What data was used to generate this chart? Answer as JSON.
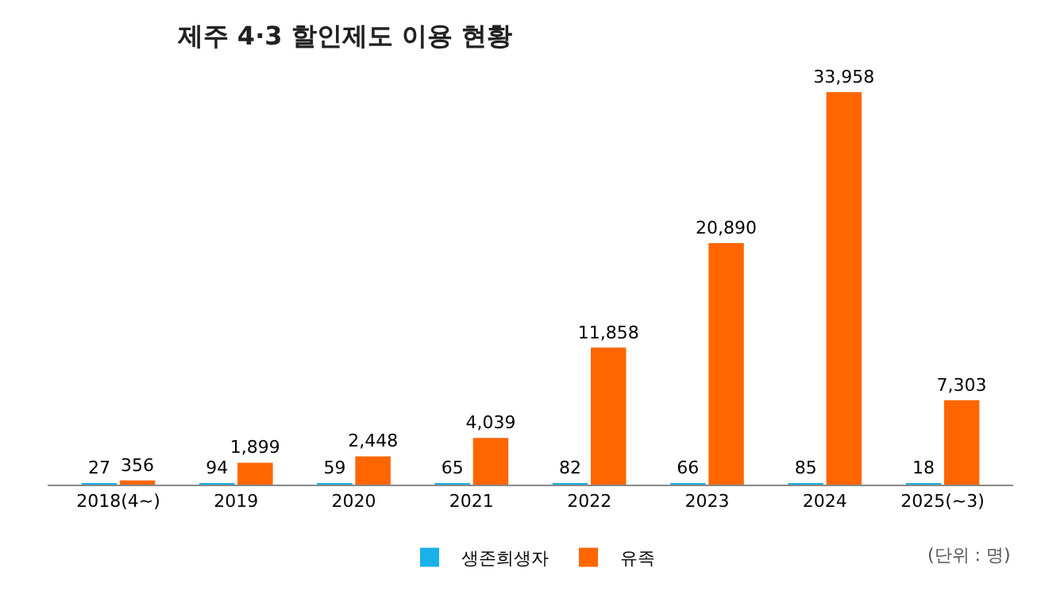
{
  "chart_data": {
    "type": "bar",
    "title": "제주 4·3 할인제도 이용 현황",
    "categories": [
      "2018(4~)",
      "2019",
      "2020",
      "2021",
      "2022",
      "2023",
      "2024",
      "2025(~3)"
    ],
    "series": [
      {
        "name": "생존희생자",
        "color": "#1ab0e8",
        "values": [
          27,
          94,
          59,
          65,
          82,
          66,
          85,
          18
        ],
        "value_labels": [
          "27",
          "94",
          "59",
          "65",
          "82",
          "66",
          "85",
          "18"
        ]
      },
      {
        "name": "유족",
        "color": "#ff6600",
        "values": [
          356,
          1899,
          2448,
          4039,
          11858,
          20890,
          33958,
          7303
        ],
        "value_labels": [
          "356",
          "1,899",
          "2,448",
          "4,039",
          "11,858",
          "20,890",
          "33,958",
          "7,303"
        ]
      }
    ],
    "legend": "bottom",
    "tick_labels": "x",
    "annotations": [
      "(단위 : 명)"
    ]
  }
}
